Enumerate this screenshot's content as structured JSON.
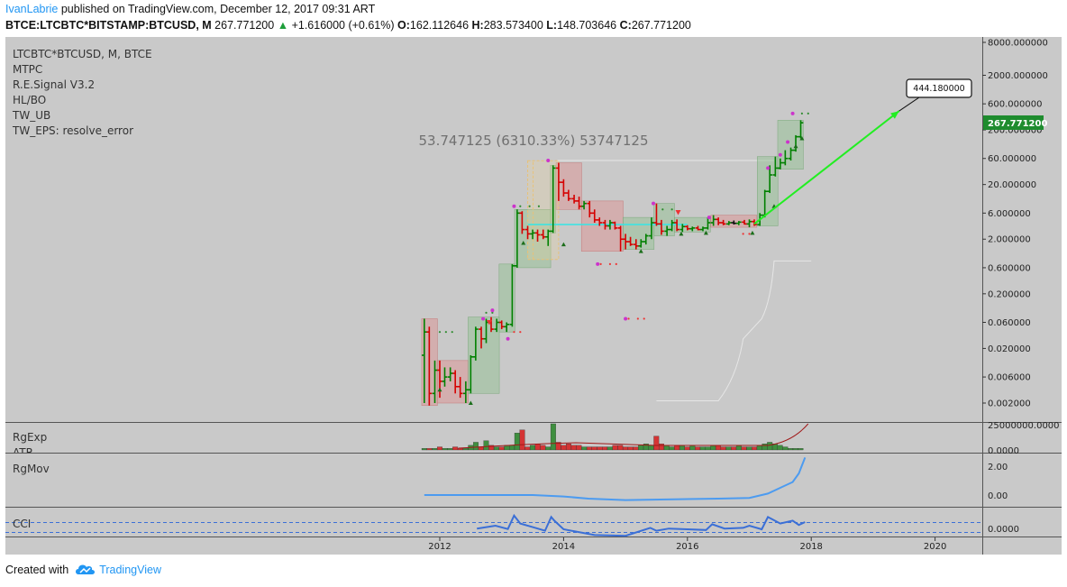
{
  "header": {
    "username": "IvanLabrie",
    "published_text": " published on TradingView.com, December 12, 2017 09:31 ART",
    "symbol": "BTCE:LTCBTC*BITSTAMP:BTCUSD, M",
    "last_price": "267.771200",
    "change_arrow": "▲",
    "change": "+1.616000 (+0.61%)",
    "open_label": "O:",
    "open": "162.112646",
    "high_label": "H:",
    "high": "283.573400",
    "low_label": "L:",
    "low": "148.703646",
    "close_label": "C:",
    "close": "267.771200"
  },
  "overlay_labels": [
    "LTCBTC*BTCUSD, M, BTCE",
    "MTPC",
    "R.E.Signal V3.2",
    "HL/BO",
    "TW_UB",
    "TW_EPS: resolve_error"
  ],
  "measure_label": "53.747125 (6310.33%) 53747125",
  "target_label": "444.180000",
  "price_badge": "267.771200",
  "price_axis_labels": [
    "8000.000000",
    "2000.000000",
    "600.000000",
    "200.000000",
    "60.000000",
    "20.000000",
    "6.000000",
    "2.000000",
    "0.600000",
    "0.200000",
    "0.060000",
    "0.020000",
    "0.006000",
    "0.002000"
  ],
  "x_axis_labels": [
    "2012",
    "2014",
    "2016",
    "2018",
    "2020"
  ],
  "panes": {
    "rgexp": {
      "labels": [
        "RgExp",
        "ATR"
      ],
      "axis_labels": [
        "25000000.0000",
        "0.0000"
      ]
    },
    "rgmov": {
      "labels": [
        "RgMov"
      ],
      "axis_labels": [
        "2.00",
        "0.00"
      ]
    },
    "cci": {
      "labels": [
        "CCI"
      ],
      "axis_labels": [
        "0.0000"
      ]
    }
  },
  "footer": {
    "created_with": "Created with",
    "brand": "TradingView"
  },
  "colors": {
    "background": "#c9c9c9",
    "bull": "#008000",
    "bear": "#d50000",
    "neutral": "#111111",
    "arrow": "#22ee22",
    "measure_line": "#33e6e6",
    "rgmov_line": "#4c9bf0",
    "badge": "#1e8c2e",
    "brand": "#2196f3"
  },
  "chart_data": {
    "type": "candlestick",
    "title": "LTCBTC*BTCUSD, M, BTCE",
    "yscale": "log",
    "ylim": [
      0.0015,
      12000
    ],
    "xlim": [
      2011.0,
      2020.8
    ],
    "x_ticks": [
      2012,
      2014,
      2016,
      2018,
      2020
    ],
    "series": [
      {
        "name": "LTCBTC*BTCUSD",
        "ohlc": [
          [
            2011.75,
            0.015,
            0.07,
            0.002,
            0.04
          ],
          [
            2011.83,
            0.04,
            0.05,
            0.0018,
            0.003
          ],
          [
            2011.92,
            0.003,
            0.012,
            0.002,
            0.008
          ],
          [
            2012.0,
            0.008,
            0.012,
            0.0025,
            0.005
          ],
          [
            2012.08,
            0.005,
            0.009,
            0.004,
            0.006
          ],
          [
            2012.17,
            0.006,
            0.009,
            0.005,
            0.007
          ],
          [
            2012.25,
            0.007,
            0.008,
            0.003,
            0.004
          ],
          [
            2012.33,
            0.004,
            0.006,
            0.0025,
            0.003
          ],
          [
            2012.42,
            0.003,
            0.005,
            0.002,
            0.0035
          ],
          [
            2012.5,
            0.0035,
            0.015,
            0.003,
            0.014
          ],
          [
            2012.58,
            0.014,
            0.05,
            0.012,
            0.045
          ],
          [
            2012.67,
            0.045,
            0.05,
            0.02,
            0.03
          ],
          [
            2012.75,
            0.03,
            0.07,
            0.025,
            0.06
          ],
          [
            2012.83,
            0.06,
            0.075,
            0.04,
            0.045
          ],
          [
            2012.92,
            0.045,
            0.07,
            0.04,
            0.06
          ],
          [
            2013.0,
            0.06,
            0.065,
            0.045,
            0.05
          ],
          [
            2013.08,
            0.05,
            0.06,
            0.04,
            0.055
          ],
          [
            2013.17,
            0.055,
            0.7,
            0.05,
            0.65
          ],
          [
            2013.25,
            0.65,
            7.0,
            0.6,
            6.0
          ],
          [
            2013.33,
            6.0,
            6.5,
            2.5,
            3.0
          ],
          [
            2013.42,
            3.0,
            3.5,
            2.0,
            2.5
          ],
          [
            2013.5,
            2.5,
            3.0,
            2.0,
            2.6
          ],
          [
            2013.58,
            2.6,
            3.0,
            1.8,
            2.4
          ],
          [
            2013.67,
            2.4,
            3.0,
            2.0,
            2.2
          ],
          [
            2013.75,
            2.2,
            3.0,
            1.5,
            2.8
          ],
          [
            2013.83,
            2.8,
            45.0,
            2.6,
            40.0
          ],
          [
            2013.92,
            40.0,
            50.0,
            10.0,
            22.0
          ],
          [
            2014.0,
            22.0,
            25.0,
            12.0,
            14.0
          ],
          [
            2014.08,
            14.0,
            16.0,
            10.0,
            11.0
          ],
          [
            2014.17,
            11.0,
            13.0,
            9.0,
            10.0
          ],
          [
            2014.25,
            10.0,
            12.0,
            7.0,
            8.0
          ],
          [
            2014.33,
            8.0,
            10.0,
            7.0,
            9.0
          ],
          [
            2014.42,
            9.0,
            10.0,
            5.0,
            6.0
          ],
          [
            2014.5,
            6.0,
            7.0,
            4.0,
            4.5
          ],
          [
            2014.58,
            4.5,
            5.0,
            3.5,
            4.0
          ],
          [
            2014.67,
            4.0,
            4.5,
            3.0,
            3.5
          ],
          [
            2014.75,
            3.5,
            4.5,
            3.0,
            4.0
          ],
          [
            2014.83,
            4.0,
            4.2,
            3.0,
            3.2
          ],
          [
            2014.92,
            3.2,
            3.5,
            1.2,
            2.0
          ],
          [
            2015.0,
            2.0,
            2.5,
            1.3,
            1.8
          ],
          [
            2015.08,
            1.8,
            2.2,
            1.5,
            1.6
          ],
          [
            2015.17,
            1.6,
            2.0,
            1.3,
            1.5
          ],
          [
            2015.25,
            1.5,
            2.0,
            1.4,
            1.8
          ],
          [
            2015.33,
            1.8,
            2.5,
            1.6,
            2.3
          ],
          [
            2015.42,
            2.3,
            5.0,
            2.0,
            4.0
          ],
          [
            2015.5,
            4.0,
            9.0,
            3.5,
            3.8
          ],
          [
            2015.58,
            3.8,
            4.5,
            2.4,
            2.8
          ],
          [
            2015.67,
            2.8,
            3.5,
            2.3,
            3.0
          ],
          [
            2015.75,
            3.0,
            4.5,
            2.8,
            4.0
          ],
          [
            2015.83,
            4.0,
            4.6,
            2.8,
            3.0
          ],
          [
            2015.92,
            3.0,
            3.8,
            2.7,
            3.4
          ],
          [
            2016.0,
            3.4,
            3.6,
            2.9,
            3.1
          ],
          [
            2016.08,
            3.1,
            3.4,
            2.8,
            3.2
          ],
          [
            2016.17,
            3.2,
            3.5,
            2.9,
            3.0
          ],
          [
            2016.25,
            3.0,
            3.4,
            2.8,
            3.2
          ],
          [
            2016.33,
            3.2,
            5.0,
            3.0,
            4.0
          ],
          [
            2016.42,
            4.0,
            5.5,
            3.5,
            4.6
          ],
          [
            2016.5,
            4.6,
            5.0,
            3.6,
            4.0
          ],
          [
            2016.58,
            4.0,
            4.5,
            3.6,
            3.8
          ],
          [
            2016.67,
            3.8,
            4.3,
            3.6,
            4.0
          ],
          [
            2016.75,
            4.0,
            4.4,
            3.7,
            3.9
          ],
          [
            2016.83,
            3.9,
            4.3,
            3.6,
            4.1
          ],
          [
            2016.92,
            4.1,
            4.5,
            3.7,
            3.8
          ],
          [
            2017.0,
            3.8,
            4.6,
            3.3,
            4.2
          ],
          [
            2017.08,
            4.2,
            4.6,
            3.5,
            3.7
          ],
          [
            2017.17,
            3.7,
            6.0,
            3.5,
            5.5
          ],
          [
            2017.25,
            5.5,
            16.0,
            5.0,
            15.0
          ],
          [
            2017.33,
            15.0,
            45.0,
            14.0,
            30.0
          ],
          [
            2017.42,
            30.0,
            65.0,
            28.0,
            40.0
          ],
          [
            2017.5,
            40.0,
            60.0,
            38.0,
            50.0
          ],
          [
            2017.58,
            50.0,
            85.0,
            45.0,
            60.0
          ],
          [
            2017.67,
            60.0,
            95.0,
            55.0,
            85.0
          ],
          [
            2017.75,
            85.0,
            160.0,
            80.0,
            150.0
          ],
          [
            2017.83,
            150.0,
            300.0,
            140.0,
            270.0
          ]
        ]
      }
    ],
    "annotations": {
      "measure": {
        "x_from": 2013.42,
        "x_to": 2013.92,
        "y_from": 0.85,
        "y_to": 54.6,
        "change": 53.747125,
        "pct": 6310.33
      },
      "support_line": {
        "x_from": 2013.42,
        "x_to": 2016.0,
        "y": 3.7
      },
      "target_arrow": {
        "x_from": 2017.08,
        "y_from": 3.8,
        "x_to": 2019.42,
        "y_to": 444.18
      }
    },
    "rgexp": {
      "x_from": 2011.75,
      "x_to": 2017.83,
      "values": [
        1,
        1,
        1,
        2,
        1,
        1,
        2,
        1,
        1,
        3,
        5,
        2,
        6,
        3,
        2,
        2,
        3,
        3,
        11,
        13,
        2,
        3,
        4,
        3,
        2,
        17,
        5,
        3,
        4,
        3,
        3,
        2,
        2,
        2,
        2,
        2,
        2,
        3,
        3,
        2,
        2,
        2,
        3,
        4,
        3,
        9,
        4,
        3,
        2,
        3,
        3,
        2,
        3,
        2,
        2,
        2,
        3,
        3,
        2,
        2,
        2,
        3,
        2,
        2,
        2,
        3,
        4,
        5,
        4,
        3,
        2,
        1,
        1,
        1
      ]
    },
    "rgmov": {
      "x": [
        2011.75,
        2013.5,
        2014.0,
        2014.4,
        2015.0,
        2016.5,
        2017.0,
        2017.3,
        2017.55,
        2017.7,
        2017.8,
        2017.9
      ],
      "y": [
        0.0,
        0.0,
        -0.1,
        -0.25,
        -0.35,
        -0.25,
        -0.2,
        0.1,
        0.6,
        0.9,
        1.5,
        2.6
      ]
    },
    "cci": {
      "x": [
        2012.6,
        2012.9,
        2013.1,
        2013.2,
        2013.3,
        2013.5,
        2013.7,
        2013.8,
        2013.85,
        2014.0,
        2014.5,
        2015.0,
        2015.4,
        2015.5,
        2015.7,
        2016.0,
        2016.3,
        2016.4,
        2016.6,
        2016.9,
        2017.0,
        2017.2,
        2017.3,
        2017.5,
        2017.7,
        2017.8,
        2017.9
      ],
      "y": [
        0.05,
        0.25,
        0.02,
        0.95,
        0.4,
        0.15,
        -0.1,
        0.85,
        0.6,
        0.0,
        -0.4,
        -0.45,
        0.1,
        -0.1,
        0.05,
        0.0,
        -0.05,
        0.35,
        0.05,
        0.1,
        0.25,
        0.0,
        0.85,
        0.4,
        0.6,
        0.3,
        0.5
      ]
    }
  }
}
